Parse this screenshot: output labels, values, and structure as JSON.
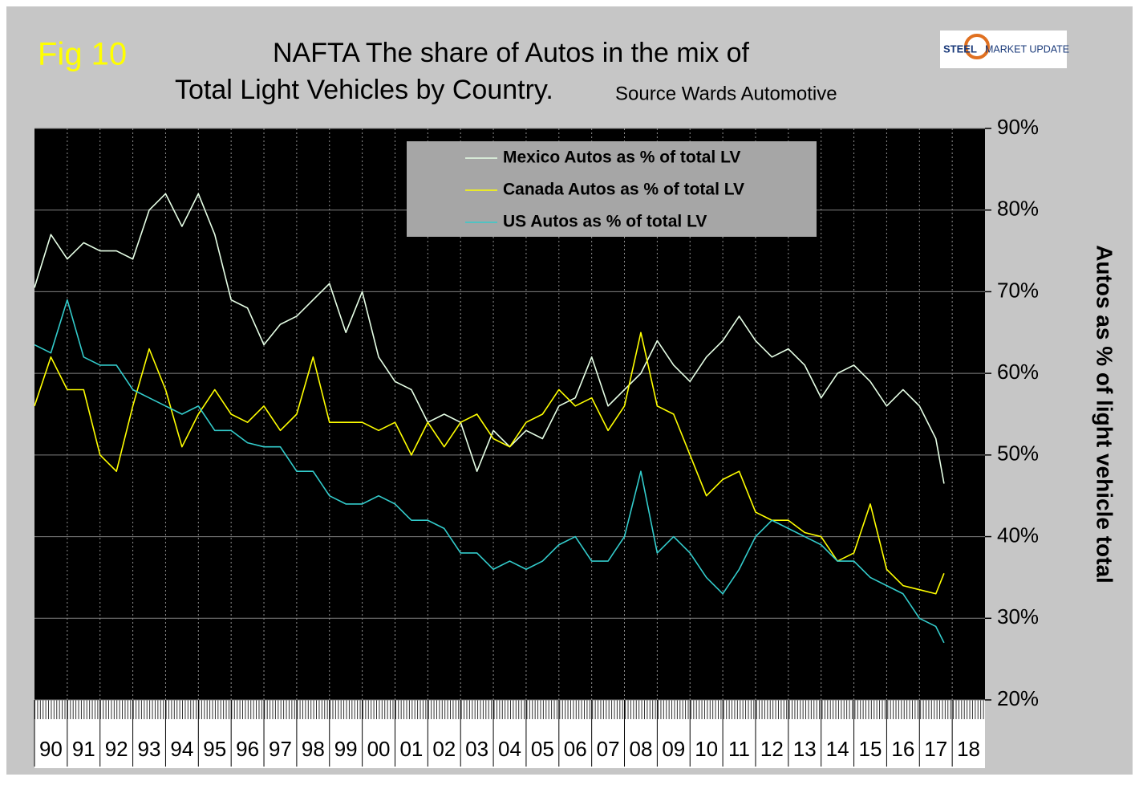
{
  "chart_data": {
    "type": "line",
    "figure_label": "Fig 10",
    "title": [
      "NAFTA   The share of Autos in the mix of",
      "Total Light Vehicles by Country."
    ],
    "subtitle": "Source Wards Automotive",
    "logo": {
      "bold": "STEEL",
      "rest": "MARKET UPDATE"
    },
    "y_label": "Autos as % of light vehicle total",
    "x": [
      1990,
      1990.5,
      1991,
      1991.5,
      1992,
      1992.5,
      1993,
      1993.5,
      1994,
      1994.5,
      1995,
      1995.5,
      1996,
      1996.5,
      1997,
      1997.5,
      1998,
      1998.5,
      1999,
      1999.5,
      2000,
      2000.5,
      2001,
      2001.5,
      2002,
      2002.5,
      2003,
      2003.5,
      2004,
      2004.5,
      2005,
      2005.5,
      2006,
      2006.5,
      2007,
      2007.5,
      2008,
      2008.5,
      2009,
      2009.5,
      2010,
      2010.5,
      2011,
      2011.5,
      2012,
      2012.5,
      2013,
      2013.5,
      2014,
      2014.5,
      2015,
      2015.5,
      2016,
      2016.5,
      2017,
      2017.5,
      2017.75
    ],
    "series": [
      {
        "name": "Mexico Autos as % of total LV",
        "color": "#e6ffe6",
        "values": [
          70.5,
          77,
          74,
          76,
          75,
          75,
          74,
          80,
          82,
          78,
          82,
          77,
          69,
          68,
          63.5,
          66,
          67,
          69,
          71,
          65,
          70,
          62,
          59,
          58,
          54,
          55,
          54,
          48,
          53,
          51,
          53,
          52,
          56,
          57,
          62,
          56,
          58,
          60,
          64,
          61,
          59,
          62,
          64,
          67,
          64,
          62,
          63,
          61,
          57,
          60,
          61,
          59,
          56,
          58,
          56,
          52,
          46.5
        ]
      },
      {
        "name": "Canada Autos as % of total LV",
        "color": "#ffff00",
        "values": [
          56,
          62,
          58,
          58,
          50,
          48,
          56,
          63,
          58,
          51,
          55,
          58,
          55,
          54,
          56,
          53,
          55,
          62,
          54,
          54,
          54,
          53,
          54,
          50,
          54,
          51,
          54,
          55,
          52,
          51,
          54,
          55,
          58,
          56,
          57,
          53,
          56,
          65,
          56,
          55,
          50,
          45,
          47,
          48,
          43,
          42,
          42,
          40.5,
          40,
          37,
          38,
          44,
          36,
          34,
          33.5,
          33,
          35.5
        ]
      },
      {
        "name": "US Autos as % of total LV",
        "color": "#33cccc",
        "values": [
          63.5,
          62.5,
          69,
          62,
          61,
          61,
          58,
          57,
          56,
          55,
          56,
          53,
          53,
          51.5,
          51,
          51,
          48,
          48,
          45,
          44,
          44,
          45,
          44,
          42,
          42,
          41,
          38,
          38,
          36,
          37,
          36,
          37,
          39,
          40,
          37,
          37,
          40,
          48,
          38,
          40,
          38,
          35,
          33,
          36,
          40,
          42,
          41,
          40,
          39,
          37,
          37,
          35,
          34,
          33,
          30,
          29,
          27
        ]
      }
    ],
    "xlim": [
      1990,
      2019
    ],
    "xticks": [
      {
        "value": 1990,
        "label": "90"
      },
      {
        "value": 1991,
        "label": "91"
      },
      {
        "value": 1992,
        "label": "92"
      },
      {
        "value": 1993,
        "label": "93"
      },
      {
        "value": 1994,
        "label": "94"
      },
      {
        "value": 1995,
        "label": "95"
      },
      {
        "value": 1996,
        "label": "96"
      },
      {
        "value": 1997,
        "label": "97"
      },
      {
        "value": 1998,
        "label": "98"
      },
      {
        "value": 1999,
        "label": "99"
      },
      {
        "value": 2000,
        "label": "00"
      },
      {
        "value": 2001,
        "label": "01"
      },
      {
        "value": 2002,
        "label": "02"
      },
      {
        "value": 2003,
        "label": "03"
      },
      {
        "value": 2004,
        "label": "04"
      },
      {
        "value": 2005,
        "label": "05"
      },
      {
        "value": 2006,
        "label": "06"
      },
      {
        "value": 2007,
        "label": "07"
      },
      {
        "value": 2008,
        "label": "08"
      },
      {
        "value": 2009,
        "label": "09"
      },
      {
        "value": 2010,
        "label": "10"
      },
      {
        "value": 2011,
        "label": "11"
      },
      {
        "value": 2012,
        "label": "12"
      },
      {
        "value": 2013,
        "label": "13"
      },
      {
        "value": 2014,
        "label": "14"
      },
      {
        "value": 2015,
        "label": "15"
      },
      {
        "value": 2016,
        "label": "16"
      },
      {
        "value": 2017,
        "label": "17"
      },
      {
        "value": 2018,
        "label": "18"
      }
    ],
    "ylim": [
      20,
      90
    ],
    "yticks": [
      {
        "value": 20,
        "label": "20%"
      },
      {
        "value": 30,
        "label": "30%"
      },
      {
        "value": 40,
        "label": "40%"
      },
      {
        "value": 50,
        "label": "50%"
      },
      {
        "value": 60,
        "label": "60%"
      },
      {
        "value": 70,
        "label": "70%"
      },
      {
        "value": 80,
        "label": "80%"
      },
      {
        "value": 90,
        "label": "90%"
      }
    ],
    "grid": true,
    "legend_position": "top"
  }
}
